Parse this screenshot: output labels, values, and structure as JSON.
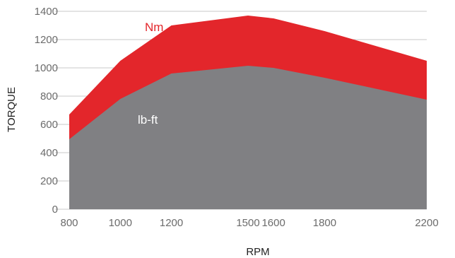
{
  "chart_data": {
    "type": "area",
    "x": [
      "800",
      "1000",
      "1200",
      "1500",
      "1600",
      "1800",
      "2200"
    ],
    "series": [
      {
        "name": "Nm",
        "values": [
          670,
          1050,
          1300,
          1370,
          1350,
          1260,
          1050
        ],
        "color": "#e3262b"
      },
      {
        "name": "lb-ft",
        "values": [
          495,
          780,
          960,
          1015,
          1000,
          930,
          775
        ],
        "color": "#808083"
      }
    ],
    "title": "",
    "xlabel": "RPM",
    "ylabel": "TORQUE",
    "ylim": [
      0,
      1400
    ],
    "yticks": [
      0,
      200,
      400,
      600,
      800,
      1000,
      1200,
      1400
    ],
    "grid": "horizontal",
    "legend": "inline"
  }
}
